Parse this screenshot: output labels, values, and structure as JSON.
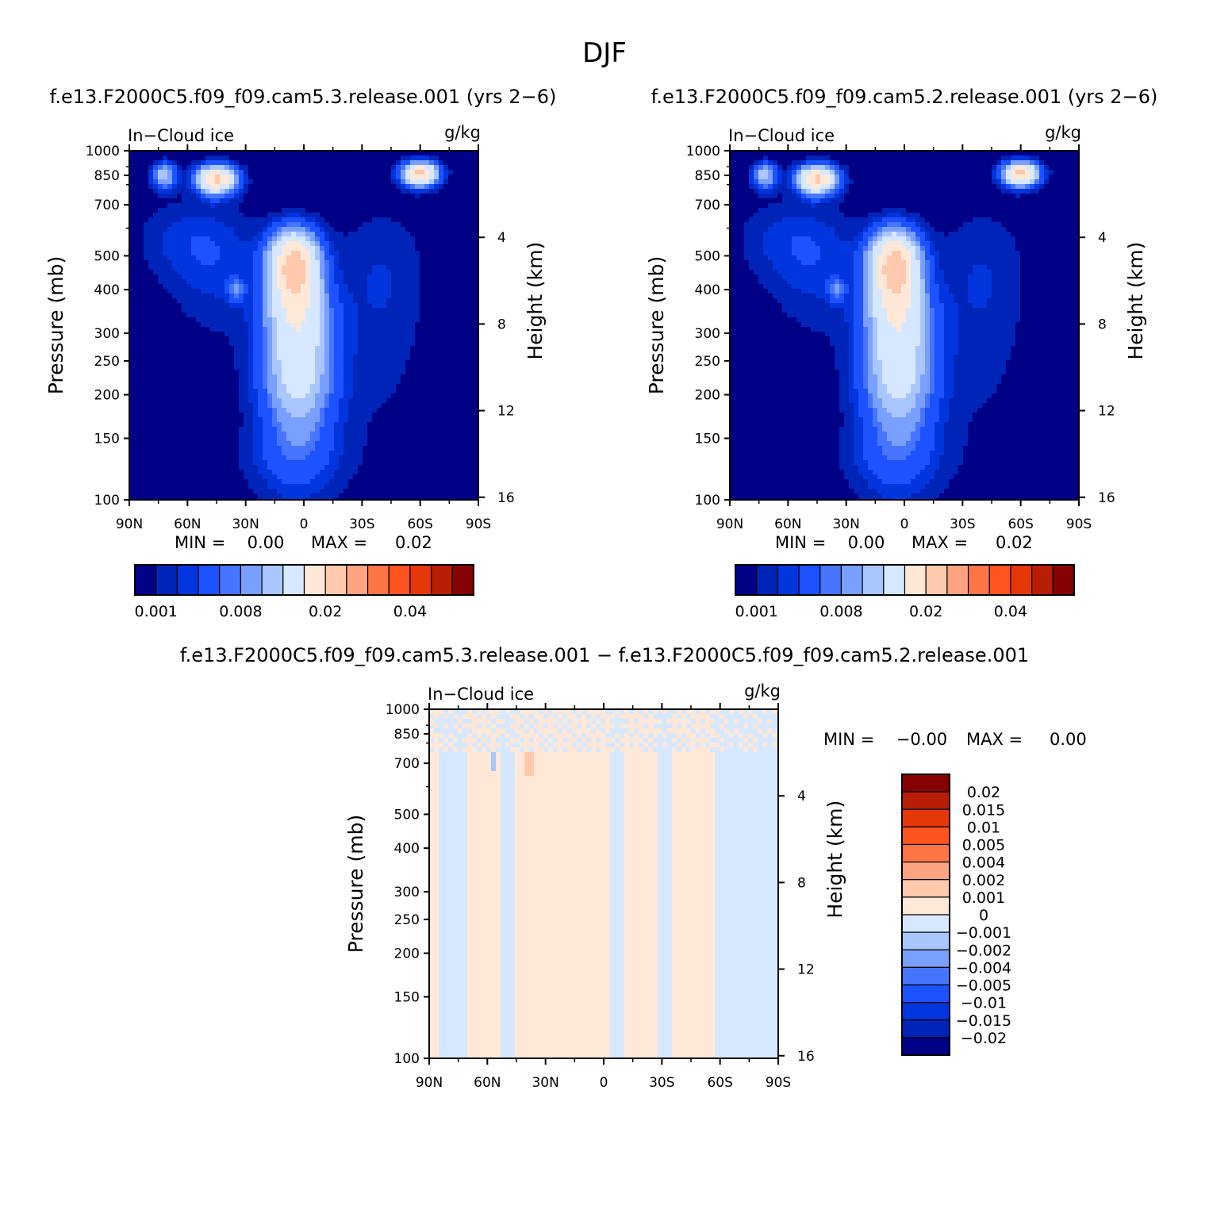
{
  "page_title": "DJF",
  "colors": {
    "seq": [
      "#000086",
      "#0124b8",
      "#0135dd",
      "#1c52ff",
      "#4775ff",
      "#79a0ff",
      "#a9c6ff",
      "#d6e8ff",
      "#ffe8d8",
      "#ffc9ad",
      "#fca481",
      "#ff7545",
      "#ff5320",
      "#e53708",
      "#b81d06",
      "#850000"
    ],
    "diff": [
      "#000086",
      "#0124b8",
      "#0135dd",
      "#1c52ff",
      "#4775ff",
      "#79a0ff",
      "#a9c6ff",
      "#d6e8ff",
      "#ffe8d8",
      "#ffc9ad",
      "#fca481",
      "#ff7545",
      "#ff5320",
      "#e53708",
      "#b81d06",
      "#850000"
    ]
  },
  "chart_data": [
    {
      "type": "heatmap",
      "title": "f.e13.F2000C5.f09_f09.cam5.3.release.001 (yrs 2-6)",
      "left_label": "In-Cloud ice",
      "right_label": "g/kg",
      "ylabel": "Pressure (mb)",
      "y2label": "Height (km)",
      "xticks": [
        "90N",
        "60N",
        "30N",
        "0",
        "30S",
        "60S",
        "90S"
      ],
      "yticks": [
        "100",
        "150",
        "200",
        "250",
        "300",
        "400",
        "500",
        "700",
        "850",
        "1000"
      ],
      "y2ticks": [
        "16",
        "12",
        "8",
        "4"
      ],
      "ylim": [
        1000,
        100
      ],
      "stats": {
        "min_label": "MIN =",
        "min_value": "0.00",
        "max_label": "MAX =",
        "max_value": "0.02"
      },
      "colorbar": {
        "orientation": "horizontal",
        "labels": [
          "0.001",
          "0.008",
          "0.02",
          "0.04"
        ]
      },
      "features": [
        {
          "lat": 5,
          "p": 480,
          "value": 0.022
        },
        {
          "lat": -60,
          "p": 850,
          "value": 0.021
        },
        {
          "lat": 45,
          "p": 830,
          "value": 0.019
        },
        {
          "lat": 72,
          "p": 850,
          "value": 0.01
        },
        {
          "lat": 35,
          "p": 400,
          "value": 0.005
        }
      ]
    },
    {
      "type": "heatmap",
      "title": "f.e13.F2000C5.f09_f09.cam5.2.release.001 (yrs 2-6)",
      "left_label": "In-Cloud ice",
      "right_label": "g/kg",
      "ylabel": "Pressure (mb)",
      "y2label": "Height (km)",
      "xticks": [
        "90N",
        "60N",
        "30N",
        "0",
        "30S",
        "60S",
        "90S"
      ],
      "yticks": [
        "100",
        "150",
        "200",
        "250",
        "300",
        "400",
        "500",
        "700",
        "850",
        "1000"
      ],
      "y2ticks": [
        "16",
        "12",
        "8",
        "4"
      ],
      "ylim": [
        1000,
        100
      ],
      "stats": {
        "min_label": "MIN =",
        "min_value": "0.00",
        "max_label": "MAX =",
        "max_value": "0.02"
      },
      "colorbar": {
        "orientation": "horizontal",
        "labels": [
          "0.001",
          "0.008",
          "0.02",
          "0.04"
        ]
      },
      "features": [
        {
          "lat": 5,
          "p": 480,
          "value": 0.022
        },
        {
          "lat": -60,
          "p": 850,
          "value": 0.021
        },
        {
          "lat": 45,
          "p": 830,
          "value": 0.019
        },
        {
          "lat": 72,
          "p": 850,
          "value": 0.01
        },
        {
          "lat": 35,
          "p": 400,
          "value": 0.005
        }
      ]
    },
    {
      "type": "heatmap",
      "title": "f.e13.F2000C5.f09_f09.cam5.3.release.001 - f.e13.F2000C5.f09_f09.cam5.2.release.001",
      "left_label": "In-Cloud ice",
      "right_label": "g/kg",
      "ylabel": "Pressure (mb)",
      "y2label": "Height (km)",
      "xticks": [
        "90N",
        "60N",
        "30N",
        "0",
        "30S",
        "60S",
        "90S"
      ],
      "yticks": [
        "100",
        "150",
        "200",
        "250",
        "300",
        "400",
        "500",
        "700",
        "850",
        "1000"
      ],
      "y2ticks": [
        "16",
        "12",
        "8",
        "4"
      ],
      "ylim": [
        1000,
        100
      ],
      "stats": {
        "min_label": "MIN =",
        "min_value": "-0.00",
        "max_label": "MAX =",
        "max_value": "0.00"
      },
      "colorbar": {
        "orientation": "vertical",
        "labels": [
          "0.02",
          "0.015",
          "0.01",
          "0.005",
          "0.004",
          "0.002",
          "0.001",
          "0",
          "-0.001",
          "-0.002",
          "-0.004",
          "-0.005",
          "-0.01",
          "-0.015",
          "-0.02"
        ]
      },
      "positive_bands": [
        [
          90,
          86
        ],
        [
          70,
          52
        ],
        [
          45,
          -3
        ],
        [
          -10,
          -28
        ],
        [
          -36,
          -58
        ]
      ]
    }
  ]
}
